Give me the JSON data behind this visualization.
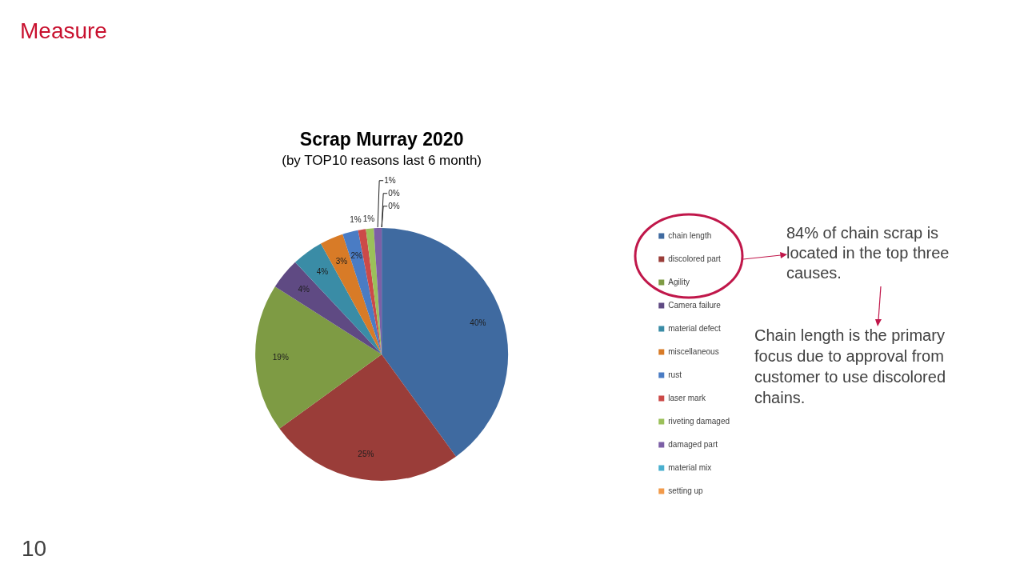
{
  "chart_data": {
    "type": "pie",
    "title": "Scrap Murray 2020",
    "subtitle": "(by TOP10 reasons last 6 month)",
    "categories": [
      "chain length",
      "discolored part",
      "Agility",
      "Camera failure",
      "material defect",
      "miscellaneous",
      "rust",
      "laser mark",
      "riveting damaged",
      "damaged part",
      "material mix",
      "setting up"
    ],
    "values": [
      40,
      25,
      19,
      4,
      4,
      3,
      2,
      1,
      1,
      1,
      0,
      0
    ],
    "colors": [
      "#3f6aa0",
      "#9a3d39",
      "#7e9b44",
      "#5f4a83",
      "#3a8ca6",
      "#d87b27",
      "#4a7cc4",
      "#cc4a48",
      "#9bc05a",
      "#7c5fa6",
      "#4ab0cf",
      "#f29a4a"
    ],
    "value_labels": [
      "40%",
      "25%",
      "19%",
      "4%",
      "4%",
      "3%",
      "2%",
      "1%",
      "1%",
      "1%",
      "0%",
      "0%"
    ],
    "legend": "right",
    "annotations": [
      "Measure",
      "84% of chain scrap is located in the top three causes.",
      "Chain length is the primary focus due to approval from customer to use discolored chains.",
      "10"
    ]
  }
}
